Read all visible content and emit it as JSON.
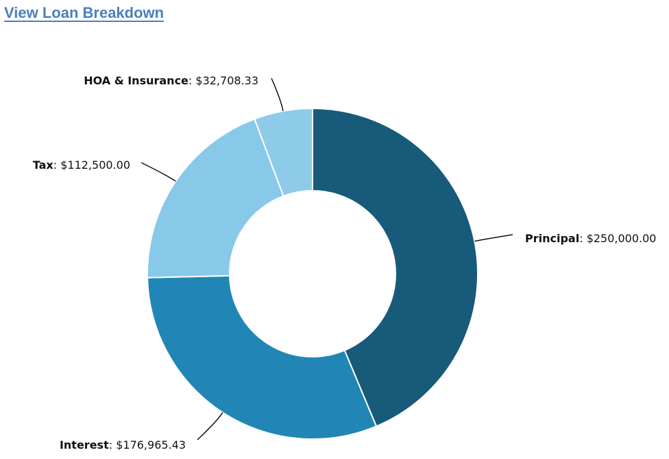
{
  "header": {
    "link_label": "View Loan Breakdown",
    "link_color": "#4a7fbd"
  },
  "chart_data": {
    "type": "pie",
    "variant": "donut",
    "title": "",
    "categories": [
      "Principal",
      "Interest",
      "Tax",
      "HOA & Insurance"
    ],
    "values": [
      250000.0,
      176965.43,
      112500.0,
      32708.33
    ],
    "value_labels": [
      "$250,000.00",
      "$176,965.43",
      "$112,500.00",
      "$32,708.33"
    ],
    "colors": [
      "#175a7a",
      "#2186b5",
      "#88c9ea",
      "#8ecbe9"
    ],
    "label_separator": ": ",
    "legend": "none",
    "data_labels": "outside-with-leader-lines"
  }
}
